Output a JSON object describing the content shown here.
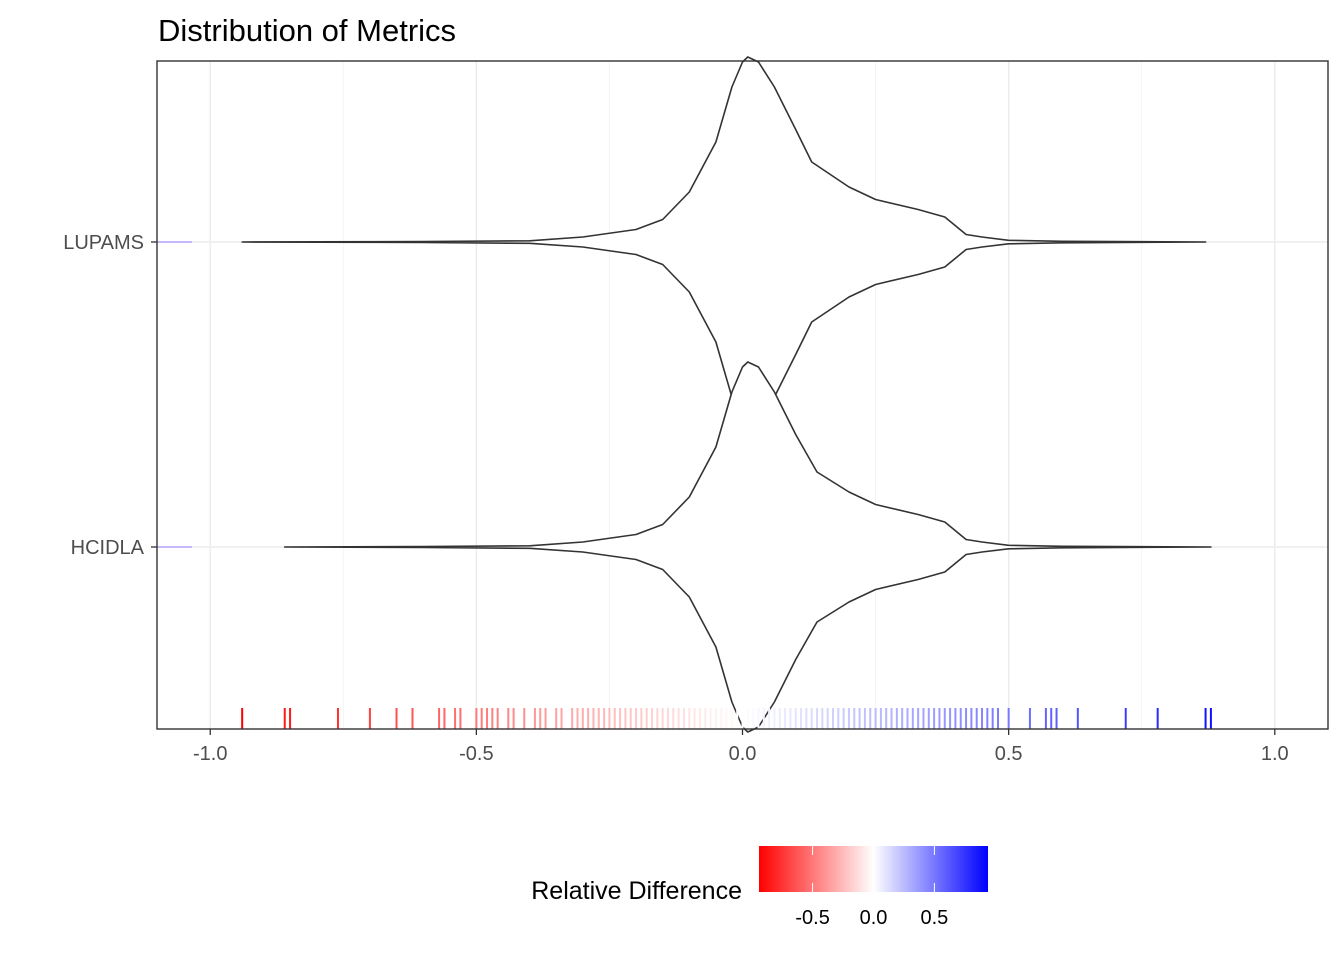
{
  "chart_data": {
    "type": "violin",
    "title": "Distribution of Metrics",
    "xlabel": "",
    "ylabel": "",
    "xlim": [
      -1.1,
      1.1
    ],
    "x_ticks": [
      -1.0,
      -0.5,
      0.0,
      0.5,
      1.0
    ],
    "x_tick_labels": [
      "-1.0",
      "-0.5",
      "0.0",
      "0.5",
      "1.0"
    ],
    "grid": true,
    "categories": [
      "LUPAMS",
      "HCIDLA"
    ],
    "series": [
      {
        "range": [
          -0.94,
          0.87
        ],
        "density_x": [
          -0.94,
          -0.6,
          -0.4,
          -0.3,
          -0.2,
          -0.15,
          -0.1,
          -0.05,
          -0.02,
          0.0,
          0.01,
          0.03,
          0.06,
          0.1,
          0.13,
          0.2,
          0.25,
          0.33,
          0.38,
          0.42,
          0.45,
          0.5,
          0.6,
          0.87
        ],
        "density_w": [
          0.0,
          0.002,
          0.005,
          0.02,
          0.05,
          0.09,
          0.2,
          0.4,
          0.62,
          0.72,
          0.74,
          0.72,
          0.62,
          0.45,
          0.32,
          0.22,
          0.17,
          0.13,
          0.1,
          0.03,
          0.02,
          0.007,
          0.003,
          0.0
        ]
      },
      {
        "range": [
          -0.86,
          0.88
        ],
        "density_x": [
          -0.86,
          -0.6,
          -0.4,
          -0.3,
          -0.2,
          -0.15,
          -0.1,
          -0.05,
          -0.02,
          0.0,
          0.01,
          0.03,
          0.06,
          0.1,
          0.14,
          0.2,
          0.25,
          0.33,
          0.38,
          0.42,
          0.45,
          0.5,
          0.6,
          0.88
        ],
        "density_w": [
          0.0,
          0.002,
          0.005,
          0.02,
          0.05,
          0.09,
          0.2,
          0.4,
          0.62,
          0.72,
          0.74,
          0.72,
          0.62,
          0.45,
          0.3,
          0.22,
          0.17,
          0.13,
          0.1,
          0.03,
          0.02,
          0.007,
          0.003,
          0.0
        ]
      }
    ],
    "rug_values": [
      -0.94,
      -0.86,
      -0.85,
      -0.76,
      -0.7,
      -0.65,
      -0.62,
      -0.57,
      -0.56,
      -0.54,
      -0.53,
      -0.5,
      -0.49,
      -0.48,
      -0.47,
      -0.46,
      -0.44,
      -0.43,
      -0.41,
      -0.39,
      -0.38,
      -0.37,
      -0.35,
      -0.34,
      -0.32,
      -0.31,
      -0.3,
      -0.29,
      -0.28,
      -0.27,
      -0.26,
      -0.25,
      -0.24,
      -0.23,
      -0.22,
      -0.21,
      -0.2,
      -0.19,
      -0.18,
      -0.17,
      -0.16,
      -0.15,
      -0.14,
      -0.13,
      -0.12,
      -0.11,
      -0.1,
      -0.09,
      -0.08,
      -0.07,
      -0.06,
      -0.05,
      -0.04,
      -0.03,
      -0.02,
      -0.01,
      0.0,
      0.01,
      0.02,
      0.03,
      0.04,
      0.05,
      0.06,
      0.07,
      0.08,
      0.09,
      0.1,
      0.11,
      0.12,
      0.13,
      0.14,
      0.15,
      0.16,
      0.17,
      0.18,
      0.19,
      0.2,
      0.21,
      0.22,
      0.23,
      0.24,
      0.25,
      0.26,
      0.27,
      0.28,
      0.29,
      0.3,
      0.31,
      0.32,
      0.33,
      0.34,
      0.35,
      0.36,
      0.37,
      0.38,
      0.39,
      0.4,
      0.41,
      0.42,
      0.43,
      0.44,
      0.45,
      0.46,
      0.47,
      0.48,
      0.5,
      0.54,
      0.57,
      0.58,
      0.59,
      0.63,
      0.72,
      0.78,
      0.87,
      0.88
    ],
    "legend": {
      "title": "Relative Difference",
      "position": "bottom",
      "color_low": "#ff0000",
      "color_mid": "#ffffff",
      "color_high": "#0000ff",
      "limits": [
        -0.94,
        0.94
      ],
      "ticks": [
        -0.5,
        0.0,
        0.5
      ],
      "tick_labels": [
        "-0.5",
        "0.0",
        "0.5"
      ]
    },
    "y_axis_marker_color": "#b8a3ff"
  }
}
